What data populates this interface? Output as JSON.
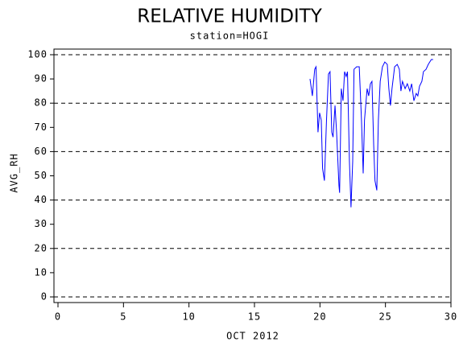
{
  "chart_data": {
    "type": "line",
    "title": "RELATIVE HUMIDITY",
    "subtitle": "station=HOGI",
    "x_label": "OCT 2012",
    "y_label": "AVG_RH",
    "xlim": [
      0,
      30
    ],
    "ylim": [
      0,
      100
    ],
    "xticks": [
      0,
      5,
      10,
      15,
      20,
      25,
      30
    ],
    "yticks": [
      0,
      10,
      20,
      30,
      40,
      50,
      60,
      70,
      80,
      90,
      100
    ],
    "ygrid": [
      0,
      20,
      40,
      60,
      80,
      100
    ],
    "series": [
      {
        "color": "#0000ff",
        "x": [
          19.24,
          19.42,
          19.6,
          19.7,
          19.85,
          19.97,
          20.1,
          20.2,
          20.34,
          20.5,
          20.65,
          20.77,
          20.9,
          21.0,
          21.15,
          21.27,
          21.45,
          21.5,
          21.63,
          21.76,
          21.88,
          22.0,
          22.1,
          22.25,
          22.37,
          22.5,
          22.6,
          22.8,
          23.0,
          23.17,
          23.3,
          23.4,
          23.6,
          23.72,
          23.85,
          23.97,
          24.1,
          24.2,
          24.34,
          24.46,
          24.6,
          24.77,
          24.95,
          25.14,
          25.26,
          25.38,
          25.5,
          25.7,
          25.9,
          26.06,
          26.18,
          26.3,
          26.5,
          26.67,
          26.86,
          27.0,
          27.17,
          27.35,
          27.47,
          27.6,
          27.78,
          27.9,
          28.1,
          28.27,
          28.5,
          28.64
        ],
        "values": [
          90,
          83,
          94,
          95,
          68,
          76,
          73,
          53,
          48,
          73,
          92,
          93,
          68,
          66,
          79,
          68,
          46,
          43,
          86,
          81,
          93,
          91,
          93,
          56,
          37,
          56,
          94,
          95,
          95,
          73,
          51,
          73,
          86,
          83,
          88,
          89,
          63,
          48,
          44,
          73,
          89,
          95,
          97,
          96,
          86,
          79,
          86,
          95,
          96,
          94,
          85,
          89,
          86,
          88,
          85,
          88,
          81,
          84,
          83,
          87,
          89,
          93,
          94,
          96,
          98,
          98
        ]
      }
    ]
  }
}
